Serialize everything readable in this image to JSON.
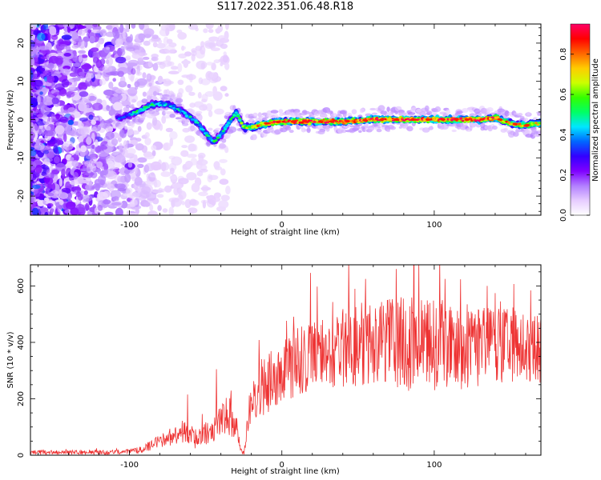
{
  "title": "S117.2022.351.06.48.R18",
  "colors": {
    "scale": [
      "#ffffff",
      "#e6ccff",
      "#b27fff",
      "#7f00ff",
      "#3300ff",
      "#0066ff",
      "#00e6ff",
      "#00ff66",
      "#33ff00",
      "#ccff00",
      "#ffcc00",
      "#ff6600",
      "#ff0000",
      "#ff0066"
    ],
    "snr_line": "#ee3333"
  },
  "chart_data": [
    {
      "type": "heatmap",
      "title": "S117.2022.351.06.48.R18",
      "xlabel": "Height of straight line (km)",
      "ylabel": "Frequency (Hz)",
      "xlim": [
        -165,
        170
      ],
      "ylim": [
        -25,
        25
      ],
      "x_ticks": [
        -100,
        0,
        100
      ],
      "y_ticks": [
        -20,
        -10,
        0,
        10,
        20
      ],
      "colorbar": {
        "label": "Normalized spectral amplitude",
        "range": [
          0.0,
          0.95
        ],
        "ticks": [
          "0.0",
          "0.2",
          "0.4",
          "0.6",
          "0.8"
        ],
        "colormap": "rainbow"
      },
      "ridge": {
        "x": [
          -105,
          -95,
          -85,
          -75,
          -65,
          -55,
          -45,
          -40,
          -35,
          -30,
          -25,
          -20,
          -10,
          0,
          20,
          40,
          60,
          80,
          100,
          120,
          130,
          140,
          150,
          160,
          170
        ],
        "frequency": [
          0.5,
          2,
          4,
          4,
          2,
          -1,
          -6,
          -4,
          -1,
          2,
          -2,
          -2,
          -1,
          -0.5,
          -0.5,
          -0.5,
          0,
          0,
          0,
          0,
          0,
          0.5,
          -1,
          -1.5,
          -1
        ],
        "amplitude": [
          0.35,
          0.5,
          0.5,
          0.45,
          0.45,
          0.45,
          0.5,
          0.5,
          0.55,
          0.55,
          0.6,
          0.7,
          0.85,
          0.9,
          0.9,
          0.9,
          0.92,
          0.9,
          0.9,
          0.9,
          0.9,
          0.85,
          0.8,
          0.75,
          0.75
        ]
      }
    },
    {
      "type": "line",
      "xlabel": "Height of straight line (km)",
      "ylabel": "SNR (10 * v/v)",
      "xlim": [
        -165,
        170
      ],
      "ylim": [
        0,
        675
      ],
      "x_ticks": [
        -100,
        0,
        100
      ],
      "y_ticks": [
        0,
        200,
        400,
        600
      ],
      "envelope": {
        "x": [
          -165,
          -140,
          -120,
          -100,
          -90,
          -80,
          -70,
          -62,
          -55,
          -45,
          -40,
          -35,
          -30,
          -27,
          -25,
          -20,
          -15,
          -10,
          -5,
          0,
          10,
          20,
          30,
          40,
          50,
          60,
          70,
          80,
          90,
          100,
          110,
          120,
          130,
          140,
          150,
          160,
          170
        ],
        "mean": [
          10,
          10,
          10,
          12,
          25,
          50,
          70,
          80,
          60,
          90,
          130,
          140,
          110,
          20,
          5,
          200,
          230,
          240,
          280,
          290,
          330,
          350,
          370,
          380,
          390,
          400,
          400,
          390,
          400,
          390,
          380,
          380,
          380,
          390,
          380,
          380,
          370
        ],
        "spread": [
          8,
          8,
          8,
          10,
          15,
          25,
          35,
          45,
          40,
          50,
          60,
          70,
          60,
          15,
          5,
          100,
          110,
          110,
          110,
          110,
          120,
          120,
          130,
          140,
          150,
          150,
          160,
          170,
          160,
          160,
          150,
          150,
          140,
          140,
          130,
          130,
          120
        ],
        "peaks": [
          [
            90,
            675
          ],
          [
            75,
            660
          ],
          [
            -43,
            305
          ],
          [
            -62,
            215
          ],
          [
            48,
            590
          ],
          [
            107,
            625
          ],
          [
            55,
            625
          ]
        ]
      }
    }
  ]
}
